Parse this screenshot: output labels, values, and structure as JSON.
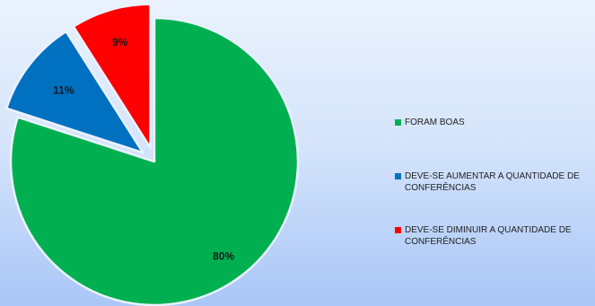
{
  "chart_data": {
    "type": "pie",
    "title": "",
    "legend_position": "right",
    "start_angle": "12 o'clock, clockwise",
    "exploded": true,
    "slices": [
      {
        "label": "FORAM BOAS",
        "value": 80,
        "display": "80%",
        "color": "#00b050"
      },
      {
        "label": "DEVE-SE AUMENTAR A QUANTIDADE DE CONFERÊNCIAS",
        "value": 11,
        "display": "11%",
        "color": "#0070c0"
      },
      {
        "label": "DEVE-SE DIMINUIR A QUANTIDADE DE CONFERÊNCIAS",
        "value": 9,
        "display": "9%",
        "color": "#ff0000"
      }
    ]
  }
}
